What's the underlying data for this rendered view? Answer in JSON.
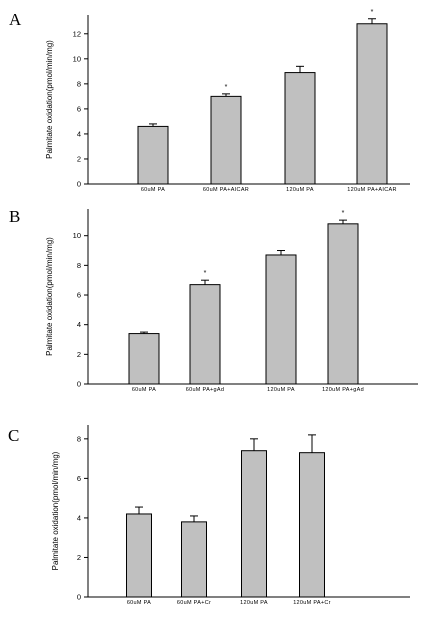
{
  "chart_data": [
    {
      "type": "bar",
      "panel_label": "A",
      "ylabel": "Palmitate oxidation(pmol/min/mg)",
      "ylim": [
        0,
        13.5
      ],
      "yticks": [
        0,
        2,
        4,
        6,
        8,
        10,
        12
      ],
      "categories": [
        "60uM PA",
        "60uM PA+AICAR",
        "120uM PA",
        "120uM PA+AICAR"
      ],
      "values": [
        4.6,
        7.0,
        8.9,
        12.8
      ],
      "errors": [
        0.2,
        0.2,
        0.5,
        0.4
      ],
      "significance": [
        "",
        "*",
        "",
        "*"
      ],
      "bar_color": "#c0c0c0",
      "grid": false
    },
    {
      "type": "bar",
      "panel_label": "B",
      "ylabel": "Palmitate oxidation(pmol/min/mg)",
      "ylim": [
        0,
        11.8
      ],
      "yticks": [
        0,
        2,
        4,
        6,
        8,
        10
      ],
      "categories": [
        "60uM PA",
        "60uM PA+gAd",
        "120uM PA",
        "120uM PA+gAd"
      ],
      "values": [
        3.4,
        6.7,
        8.7,
        10.8
      ],
      "errors": [
        0.1,
        0.3,
        0.3,
        0.25
      ],
      "significance": [
        "",
        "*",
        "",
        "*"
      ],
      "bar_color": "#c0c0c0",
      "grid": false
    },
    {
      "type": "bar",
      "panel_label": "C",
      "ylabel": "Palmitate oxidation(pmol/min/mg)",
      "ylim": [
        0,
        8.7
      ],
      "yticks": [
        0,
        2,
        4,
        6,
        8
      ],
      "categories": [
        "60uM PA",
        "60uM PA+Cr",
        "120uM PA",
        "120uM PA+Cr"
      ],
      "values": [
        4.2,
        3.8,
        7.4,
        7.3
      ],
      "errors": [
        0.35,
        0.3,
        0.6,
        0.9
      ],
      "significance": [
        "",
        "",
        "",
        ""
      ],
      "bar_color": "#c0c0c0",
      "grid": false
    }
  ]
}
